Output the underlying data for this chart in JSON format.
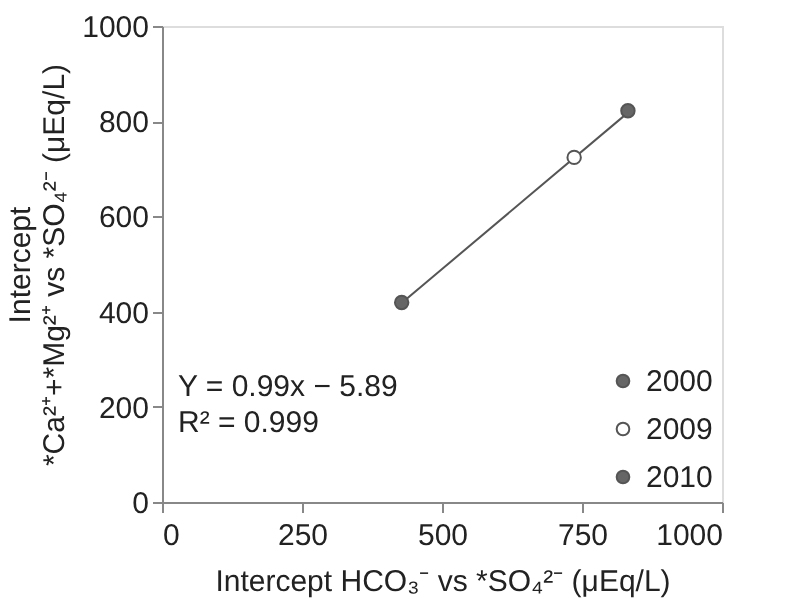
{
  "chart_data": {
    "type": "scatter",
    "xlabel": "Intercept HCO₃⁻ vs *SO₄²⁻ (μEq/L)",
    "ylabel": "Intercept\n*Ca²⁺+*Mg²⁺ vs *SO₄²⁻ (μEq/L)",
    "series": [
      {
        "type": "line",
        "color": "#555555",
        "x": [
          428,
          832
        ],
        "values": [
          418,
          818
        ],
        "marker": "none"
      },
      {
        "name": "2000",
        "color": "#666666",
        "x": [
          428
        ],
        "values": [
          419
        ],
        "marker": "circle"
      },
      {
        "name": "2009",
        "color": "#ffffff",
        "x": [
          736
        ],
        "values": [
          724
        ],
        "marker": "circle"
      },
      {
        "name": "2010",
        "color": "#666666",
        "x": [
          832
        ],
        "values": [
          822
        ],
        "marker": "circle"
      }
    ],
    "annotations": [
      "Y = 0.99x − 5.89",
      "R² = 0.999"
    ],
    "xlim": [
      0,
      1000
    ],
    "xticks": [
      0,
      250,
      500,
      750,
      1000
    ],
    "ylim": [
      0,
      1000
    ],
    "yticks": [
      0,
      200,
      400,
      600,
      800,
      1000
    ],
    "grid": false,
    "legend": "bottom right"
  }
}
